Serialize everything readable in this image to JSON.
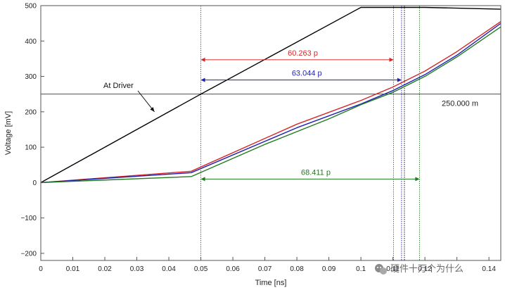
{
  "chart_data": {
    "type": "line",
    "xlabel": "Time [ns]",
    "ylabel": "Voltage [mV]",
    "xlim": [
      0,
      0.1437
    ],
    "ylim": [
      -220,
      500
    ],
    "x_ticks": [
      0,
      0.01,
      0.02,
      0.03,
      0.04,
      0.05,
      0.06,
      0.07,
      0.08,
      0.09,
      0.1,
      0.11,
      0.12,
      0.13,
      0.14
    ],
    "y_ticks": [
      -200,
      -100,
      0,
      100,
      200,
      300,
      400,
      500
    ],
    "y_tick_labels": [
      "−200",
      "−100",
      "0",
      "100",
      "200",
      "300",
      "400",
      "500"
    ],
    "grid": false,
    "series": [
      {
        "color": "#000000",
        "points": [
          [
            0,
            0
          ],
          [
            0.05,
            250
          ],
          [
            0.1,
            495
          ],
          [
            0.12,
            495
          ],
          [
            0.1437,
            490
          ]
        ]
      },
      {
        "color": "#d62728",
        "points": [
          [
            0,
            0
          ],
          [
            0.047,
            32
          ],
          [
            0.08,
            165
          ],
          [
            0.1,
            232
          ],
          [
            0.11,
            270
          ],
          [
            0.12,
            315
          ],
          [
            0.13,
            370
          ],
          [
            0.1437,
            455
          ]
        ]
      },
      {
        "color": "#1f1fb4",
        "points": [
          [
            0,
            0
          ],
          [
            0.047,
            28
          ],
          [
            0.08,
            155
          ],
          [
            0.1,
            222
          ],
          [
            0.11,
            260
          ],
          [
            0.12,
            305
          ],
          [
            0.13,
            360
          ],
          [
            0.1437,
            450
          ]
        ]
      },
      {
        "color": "#1e7b1e",
        "points": [
          [
            0,
            0
          ],
          [
            0.047,
            17
          ],
          [
            0.07,
            108
          ],
          [
            0.09,
            180
          ],
          [
            0.1,
            220
          ],
          [
            0.11,
            255
          ],
          [
            0.12,
            300
          ],
          [
            0.13,
            355
          ],
          [
            0.1437,
            440
          ]
        ]
      }
    ],
    "reference_line": {
      "y": 250,
      "label": "250.000 m",
      "color": "#333333"
    },
    "markers": [
      {
        "x": 0.05,
        "color": "#1e7b1e"
      },
      {
        "x": 0.1102,
        "color": "#d62728"
      },
      {
        "x": 0.1127,
        "color": "#1f1fb4"
      },
      {
        "x": 0.1136,
        "color": "#000000"
      },
      {
        "x": 0.1183,
        "color": "#1e7b1e"
      }
    ],
    "measurements": [
      {
        "label": "60.263 p",
        "x1": 0.05,
        "x2": 0.1102,
        "y": 347,
        "color": "#d62728"
      },
      {
        "label": "63.044 p",
        "x1": 0.05,
        "x2": 0.1127,
        "y": 290,
        "color": "#1f1fb4"
      },
      {
        "label": "68.411 p",
        "x1": 0.05,
        "x2": 0.1183,
        "y": 10,
        "color": "#1e7b1e"
      }
    ],
    "annotations": [
      {
        "text": "At Driver",
        "arrow_to": [
          0.0355,
          200
        ]
      }
    ]
  },
  "watermark": {
    "icon": "wechat-icon",
    "text": "硬件十万个为什么"
  }
}
